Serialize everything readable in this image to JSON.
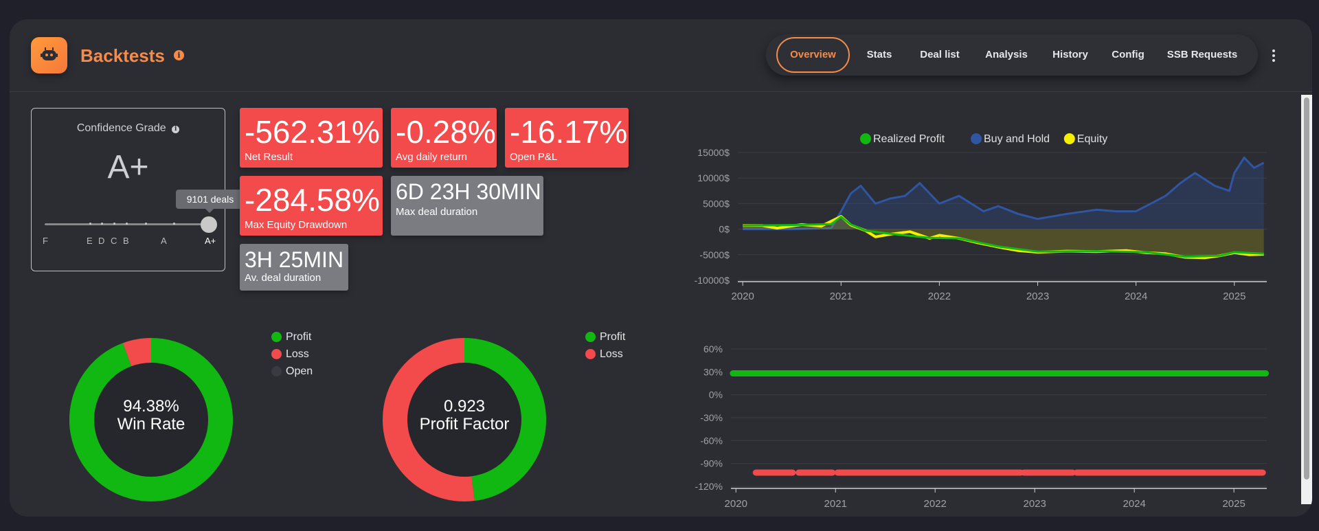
{
  "header": {
    "title": "Backtests",
    "tabs": [
      "Overview",
      "Stats",
      "Deal list",
      "Analysis",
      "History",
      "Config",
      "SSB Requests"
    ],
    "active_tab": "Overview"
  },
  "confidence": {
    "title": "Confidence Grade",
    "grade": "A+",
    "tooltip": "9101 deals",
    "scale": [
      "F",
      "E",
      "D",
      "C",
      "B",
      "A",
      "A+"
    ]
  },
  "cards": [
    {
      "value": "-562.31%",
      "label": "Net Result",
      "color": "#f34a4b"
    },
    {
      "value": "-0.28%",
      "label": "Avg daily return",
      "color": "#f34a4b"
    },
    {
      "value": "-16.17%",
      "label": "Open P&L",
      "color": "#f34a4b"
    },
    {
      "value": "-284.58%",
      "label": "Max Equity Drawdown",
      "color": "#f34a4b"
    },
    {
      "value": "6D 23H 30MIN",
      "label": "Max deal duration",
      "color": "#7b7c82"
    },
    {
      "value": "3H 25MIN",
      "label": "Av. deal duration",
      "color": "#7b7c82"
    }
  ],
  "winrate": {
    "value": "94.38%",
    "label": "Win Rate",
    "legend": [
      {
        "name": "Profit",
        "color": "#12b812"
      },
      {
        "name": "Loss",
        "color": "#f34a4b"
      },
      {
        "name": "Open",
        "color": "#3a3b42"
      }
    ],
    "slices": {
      "Profit": 94.38,
      "Loss": 5.62,
      "Open": 0
    }
  },
  "profitfactor": {
    "value": "0.923",
    "label": "Profit Factor",
    "legend": [
      {
        "name": "Profit",
        "color": "#12b812"
      },
      {
        "name": "Loss",
        "color": "#f34a4b"
      }
    ],
    "slices": {
      "Profit": 48.0,
      "Loss": 52.0
    }
  },
  "chart_data": [
    {
      "type": "line",
      "legend": [
        "Realized Profit",
        "Buy and Hold",
        "Equity"
      ],
      "legend_placement": "top",
      "colors": {
        "Realized Profit": "#12b812",
        "Buy and Hold": "#2f55a3",
        "Equity": "#f5ef00"
      },
      "yticks": [
        "15000$",
        "10000$",
        "5000$",
        "0$",
        "-5000$",
        "-10000$"
      ],
      "ylim": [
        -10000,
        15000
      ],
      "xticks": [
        "2020",
        "2021",
        "2022",
        "2023",
        "2024",
        "2025"
      ],
      "xlim": [
        2019.95,
        2025.33
      ],
      "series": [
        {
          "name": "Buy and Hold",
          "x": [
            2020.0,
            2020.5,
            2020.9,
            2021.0,
            2021.1,
            2021.2,
            2021.35,
            2021.5,
            2021.65,
            2021.8,
            2021.9,
            2022.0,
            2022.2,
            2022.45,
            2022.6,
            2022.8,
            2023.0,
            2023.3,
            2023.6,
            2023.8,
            2024.0,
            2024.15,
            2024.3,
            2024.45,
            2024.6,
            2024.8,
            2024.95,
            2025.0,
            2025.1,
            2025.2,
            2025.3
          ],
          "y": [
            0,
            0,
            200,
            3500,
            7000,
            8500,
            5000,
            6000,
            6500,
            9000,
            7000,
            5000,
            6500,
            3500,
            4500,
            3000,
            2000,
            3000,
            3800,
            3500,
            3500,
            5000,
            6500,
            9000,
            11000,
            8500,
            7500,
            11000,
            14000,
            12000,
            13000
          ]
        },
        {
          "name": "Equity",
          "x": [
            2020.0,
            2020.2,
            2020.35,
            2020.6,
            2020.8,
            2021.0,
            2021.1,
            2021.25,
            2021.35,
            2021.5,
            2021.7,
            2021.9,
            2022.0,
            2022.2,
            2022.4,
            2022.6,
            2022.8,
            2023.0,
            2023.3,
            2023.6,
            2023.9,
            2024.1,
            2024.3,
            2024.5,
            2024.7,
            2024.85,
            2025.0,
            2025.15,
            2025.3
          ],
          "y": [
            700,
            700,
            200,
            900,
            600,
            2500,
            800,
            -300,
            -1500,
            -1000,
            -500,
            -1800,
            -1200,
            -1800,
            -2700,
            -3500,
            -4200,
            -4500,
            -4300,
            -4400,
            -4200,
            -4600,
            -4800,
            -5500,
            -5600,
            -5200,
            -4600,
            -5000,
            -4900
          ]
        },
        {
          "name": "Realized Profit",
          "x": [
            2020.0,
            2020.5,
            2020.9,
            2021.0,
            2021.1,
            2021.25,
            2021.5,
            2021.9,
            2022.2,
            2022.6,
            2023.0,
            2023.6,
            2024.1,
            2024.5,
            2024.85,
            2025.0,
            2025.3
          ],
          "y": [
            700,
            800,
            1000,
            2400,
            900,
            -300,
            -900,
            -1700,
            -1800,
            -3400,
            -4400,
            -4300,
            -4500,
            -5400,
            -5200,
            -4500,
            -4800
          ]
        }
      ]
    },
    {
      "type": "scatter",
      "yticks": [
        "60%",
        "30%",
        "0%",
        "-30%",
        "-60%",
        "-90%",
        "-120%"
      ],
      "ylim": [
        -120,
        60
      ],
      "xticks": [
        "2020",
        "2021",
        "2022",
        "2023",
        "2024",
        "2025"
      ],
      "xlim": [
        2019.95,
        2025.33
      ],
      "series": [
        {
          "name": "Profit",
          "color": "#12b812",
          "y": 28,
          "x_ranges": [
            [
              2019.97,
              2025.32
            ]
          ]
        },
        {
          "name": "Loss",
          "color": "#f34a4b",
          "y": -102,
          "x_ranges": [
            [
              2020.2,
              2020.57
            ],
            [
              2020.63,
              2020.97
            ],
            [
              2021.02,
              2022.86
            ],
            [
              2022.89,
              2023.38
            ],
            [
              2023.42,
              2025.29
            ]
          ]
        }
      ]
    }
  ]
}
